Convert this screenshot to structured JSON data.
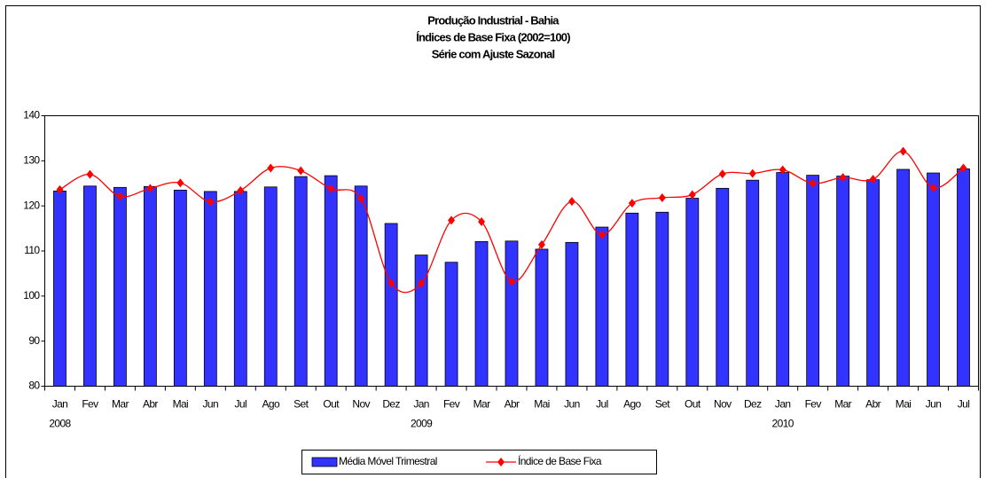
{
  "chart_data": {
    "type": "bar_line",
    "title": "Produção Industrial - Bahia",
    "subtitle": [
      "Índices de Base Fixa (2002=100)",
      "Série com Ajuste Sazonal"
    ],
    "categories": [
      "Jan",
      "Fev",
      "Mar",
      "Abr",
      "Mai",
      "Jun",
      "Jul",
      "Ago",
      "Set",
      "Out",
      "Nov",
      "Dez",
      "Jan",
      "Fev",
      "Mar",
      "Abr",
      "Mai",
      "Jun",
      "Jul",
      "Ago",
      "Set",
      "Out",
      "Nov",
      "Dez",
      "Jan",
      "Fev",
      "Mar",
      "Abr",
      "Mai",
      "Jun",
      "Jul"
    ],
    "years": [
      "2008",
      null,
      null,
      null,
      null,
      null,
      null,
      null,
      null,
      null,
      null,
      null,
      "2009",
      null,
      null,
      null,
      null,
      null,
      null,
      null,
      null,
      null,
      null,
      null,
      "2010",
      null,
      null,
      null,
      null,
      null,
      null
    ],
    "series": [
      {
        "name": "Média Móvel Trimestral",
        "type": "bar",
        "color": "#3333ff",
        "values": [
          123.3,
          124.4,
          124.1,
          124.3,
          123.5,
          123.2,
          123.2,
          124.2,
          126.5,
          126.7,
          124.4,
          116.1,
          109.1,
          107.5,
          112.1,
          112.2,
          110.4,
          111.9,
          115.3,
          118.4,
          118.6,
          121.7,
          123.9,
          125.7,
          127.4,
          126.8,
          126.6,
          125.8,
          128.1,
          127.3,
          128.2
        ]
      },
      {
        "name": "Índice de Base Fixa",
        "type": "line",
        "color": "#ff0000",
        "values": [
          123.6,
          127.0,
          122.1,
          123.9,
          125.1,
          120.9,
          123.4,
          128.4,
          127.8,
          123.8,
          121.6,
          102.9,
          102.8,
          116.8,
          116.5,
          103.2,
          111.4,
          121.0,
          113.6,
          120.6,
          121.8,
          122.5,
          127.1,
          127.2,
          128.0,
          125.0,
          126.3,
          125.9,
          132.1,
          124.0,
          128.4
        ]
      }
    ],
    "ylim": [
      80,
      140
    ],
    "yticks": [
      80,
      90,
      100,
      110,
      120,
      130,
      140
    ],
    "grid": false,
    "legend": "bottom"
  }
}
